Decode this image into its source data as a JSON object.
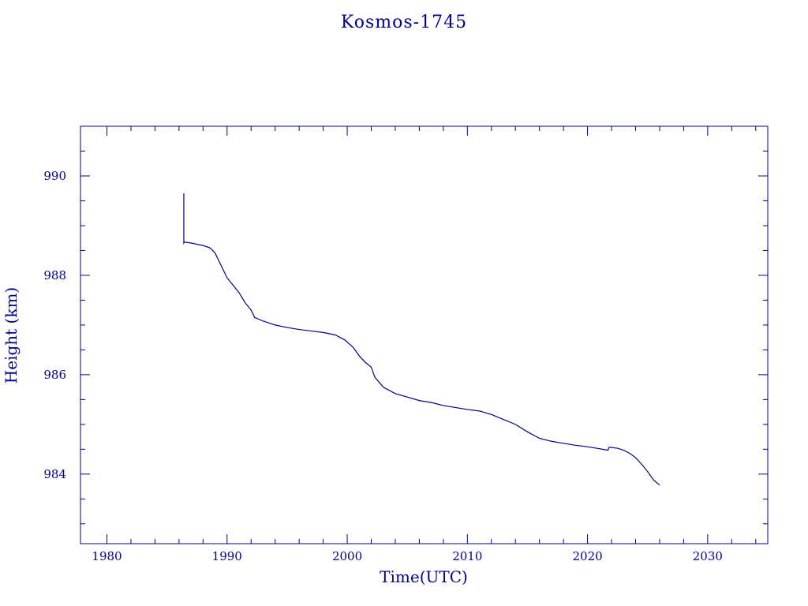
{
  "chart_data": {
    "type": "line",
    "title": "Kosmos-1745",
    "xlabel": "Time(UTC)",
    "ylabel": "Height (km)",
    "xlim": [
      1977.8,
      2035
    ],
    "ylim": [
      982.6,
      991
    ],
    "xticks": [
      1980,
      1990,
      2000,
      2010,
      2020,
      2030
    ],
    "yticks": [
      984,
      986,
      988,
      990
    ],
    "grid": false,
    "color": "#00008b",
    "series": [
      {
        "x": [
          1986.4,
          1986.4,
          1986.45,
          1987.0,
          1988.0,
          1988.6,
          1989.0,
          1989.5,
          1990.0,
          1990.5,
          1991.0,
          1991.5,
          1992.0,
          1992.3,
          1993.0,
          1994.0,
          1995.0,
          1996.0,
          1997.0,
          1998.0,
          1999.0,
          1999.8,
          2000.5,
          2001.0,
          2001.5,
          2002.0,
          2002.3,
          2003.0,
          2004.0,
          2005.0,
          2006.0,
          2007.0,
          2008.0,
          2009.0,
          2010.0,
          2011.0,
          2012.0,
          2013.0,
          2014.0,
          2015.0,
          2016.0,
          2017.0,
          2018.0,
          2019.0,
          2020.0,
          2021.0,
          2021.7,
          2021.8,
          2022.5,
          2023.0,
          2023.5,
          2024.0,
          2024.5,
          2025.0,
          2025.5,
          2026.0
        ],
        "y": [
          989.65,
          988.65,
          988.67,
          988.65,
          988.6,
          988.55,
          988.45,
          988.2,
          987.95,
          987.8,
          987.65,
          987.45,
          987.3,
          987.15,
          987.08,
          987.0,
          986.95,
          986.91,
          986.88,
          986.85,
          986.8,
          986.7,
          986.55,
          986.38,
          986.25,
          986.15,
          985.95,
          985.75,
          985.62,
          985.55,
          985.48,
          985.44,
          985.38,
          985.34,
          985.3,
          985.27,
          985.2,
          985.1,
          985.0,
          984.85,
          984.72,
          984.66,
          984.62,
          984.58,
          984.55,
          984.51,
          984.48,
          984.54,
          984.52,
          984.48,
          984.42,
          984.33,
          984.2,
          984.05,
          983.88,
          983.78
        ]
      }
    ]
  }
}
